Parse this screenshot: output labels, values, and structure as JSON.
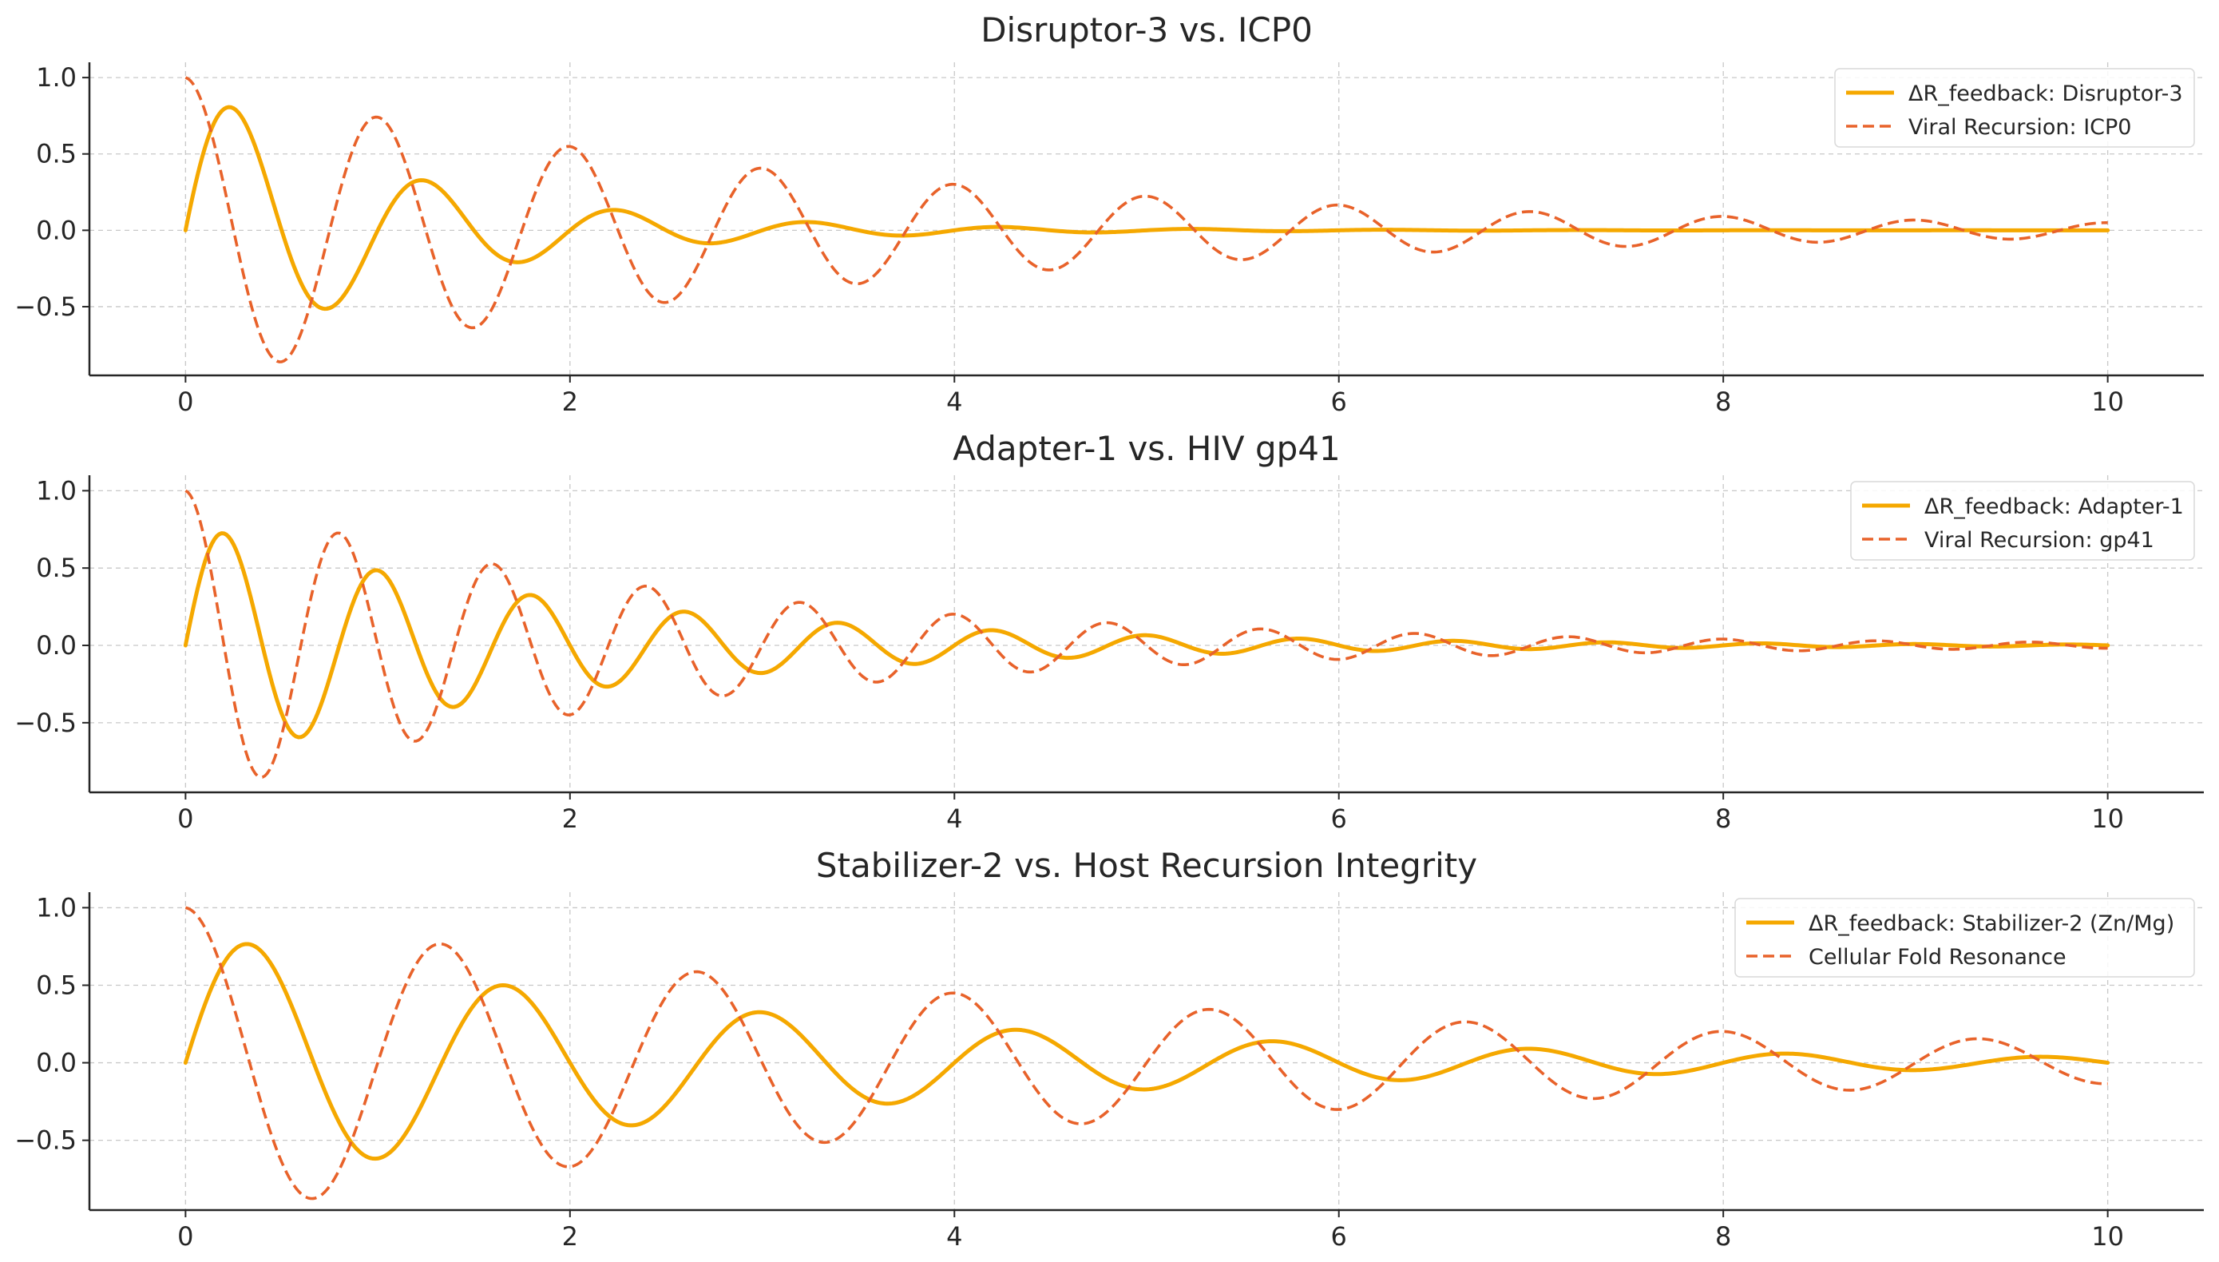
{
  "chart_data": [
    {
      "type": "line",
      "title": "Disruptor-3 vs. ICP0",
      "xlim": [
        -0.5,
        10.5
      ],
      "ylim": [
        -0.95,
        1.1
      ],
      "xticks": [
        0,
        2,
        4,
        6,
        8,
        10
      ],
      "yticks": [
        1.0,
        0.5,
        0.0,
        -0.5
      ],
      "xtick_labels": [
        "0",
        "2",
        "4",
        "6",
        "8",
        "10"
      ],
      "ytick_labels": [
        "1.0",
        "0.5",
        "0.0",
        "−0.5"
      ],
      "grid": true,
      "legend_position": "top-right",
      "series": [
        {
          "name": "ΔR_feedback: Disruptor-3",
          "color": "#f5a800",
          "style": "solid",
          "model": {
            "kind": "sin",
            "amplitude": 1.0,
            "decay": 0.9,
            "freq": 1.0
          },
          "x": [
            0,
            0.23,
            0.72,
            1.22,
            1.72,
            2.22,
            2.72,
            3.22,
            4.2,
            10
          ],
          "y": [
            0,
            0.63,
            -0.39,
            0.23,
            -0.15,
            0.09,
            -0.05,
            0.03,
            0.01,
            0
          ]
        },
        {
          "name": "Viral Recursion: ICP0",
          "color": "#e8622a",
          "style": "dashed",
          "model": {
            "kind": "cos",
            "amplitude": 1.0,
            "decay": 0.3,
            "freq": 1.0
          },
          "x": [
            0,
            0.5,
            1,
            1.5,
            2,
            2.5,
            3,
            3.5,
            4,
            4.5,
            5,
            5.5,
            6,
            6.5,
            7,
            7.5,
            8,
            8.5,
            9,
            9.5,
            10
          ],
          "y": [
            1.0,
            -0.86,
            0.74,
            -0.64,
            0.55,
            -0.47,
            0.41,
            -0.35,
            0.3,
            -0.26,
            0.22,
            -0.19,
            0.17,
            -0.14,
            0.12,
            -0.11,
            0.09,
            -0.08,
            0.07,
            -0.06,
            0.05
          ]
        }
      ]
    },
    {
      "type": "line",
      "title": "Adapter-1 vs. HIV gp41",
      "xlim": [
        -0.5,
        10.5
      ],
      "ylim": [
        -0.95,
        1.1
      ],
      "xticks": [
        0,
        2,
        4,
        6,
        8,
        10
      ],
      "yticks": [
        1.0,
        0.5,
        0.0,
        -0.5
      ],
      "xtick_labels": [
        "0",
        "2",
        "4",
        "6",
        "8",
        "10"
      ],
      "ytick_labels": [
        "1.0",
        "0.5",
        "0.0",
        "−0.5"
      ],
      "grid": true,
      "legend_position": "top-right",
      "series": [
        {
          "name": "ΔR_feedback: Adapter-1",
          "color": "#f5a800",
          "style": "solid",
          "model": {
            "kind": "sin",
            "amplitude": 0.8,
            "decay": 0.5,
            "freq": 1.25
          },
          "x": [
            0,
            0.19,
            0.59,
            0.99,
            1.39,
            1.79,
            2.19,
            2.59,
            2.99,
            3.39,
            4.2,
            10
          ],
          "y": [
            0,
            0.69,
            -0.5,
            0.36,
            -0.27,
            0.19,
            -0.14,
            0.1,
            -0.08,
            0.06,
            0.03,
            0
          ]
        },
        {
          "name": "Viral Recursion: gp41",
          "color": "#e8622a",
          "style": "dashed",
          "model": {
            "kind": "cos",
            "amplitude": 1.0,
            "decay": 0.4,
            "freq": 1.25
          },
          "x": [
            0,
            0.4,
            0.8,
            1.2,
            1.6,
            2.0,
            2.4,
            2.8,
            3.2,
            3.6,
            4.0,
            4.4,
            4.8,
            5.2,
            5.6,
            6.0,
            6.4,
            6.8,
            7.2,
            7.6,
            8.0,
            8.4,
            8.8,
            9.2,
            9.6,
            10.0
          ],
          "y": [
            1.0,
            -0.85,
            0.73,
            -0.62,
            0.53,
            -0.45,
            0.38,
            -0.33,
            0.28,
            -0.24,
            0.2,
            -0.17,
            0.15,
            -0.12,
            0.11,
            -0.09,
            0.08,
            -0.07,
            0.06,
            -0.05,
            0.04,
            -0.03,
            0.03,
            -0.03,
            0.02,
            -0.02
          ]
        }
      ]
    },
    {
      "type": "line",
      "title": "Stabilizer-2 vs. Host Recursion Integrity",
      "xlim": [
        -0.5,
        10.5
      ],
      "ylim": [
        -0.95,
        1.1
      ],
      "xticks": [
        0,
        2,
        4,
        6,
        8,
        10
      ],
      "yticks": [
        1.0,
        0.5,
        0.0,
        -0.5
      ],
      "xtick_labels": [
        "0",
        "2",
        "4",
        "6",
        "8",
        "10"
      ],
      "ytick_labels": [
        "1.0",
        "0.5",
        "0.0",
        "−0.5"
      ],
      "grid": true,
      "legend_position": "top-right",
      "series": [
        {
          "name": "ΔR_feedback: Stabilizer-2 (Zn/Mg)",
          "color": "#f5a800",
          "style": "solid",
          "model": {
            "kind": "sin",
            "amplitude": 0.85,
            "decay": 0.32,
            "freq": 0.75
          },
          "x": [
            0,
            0.33,
            0.99,
            1.66,
            2.33,
            2.99,
            3.66,
            4.33,
            4.99,
            5.66,
            6.33,
            6.99,
            7.66,
            8.33,
            9.0,
            9.66,
            10.0
          ],
          "y": [
            0,
            0.68,
            -0.49,
            0.35,
            -0.26,
            0.18,
            -0.13,
            0.09,
            -0.07,
            0.05,
            -0.04,
            0.03,
            -0.02,
            0.01,
            -0.01,
            0.01,
            0
          ]
        },
        {
          "name": "Cellular Fold Resonance",
          "color": "#e8622a",
          "style": "dashed",
          "model": {
            "kind": "cos",
            "amplitude": 1.0,
            "decay": 0.2,
            "freq": 0.75
          },
          "x": [
            0,
            0.67,
            1.33,
            2.0,
            2.67,
            3.33,
            4.0,
            4.67,
            5.33,
            6.0,
            6.67,
            7.33,
            8.0,
            8.67,
            9.33,
            10.0
          ],
          "y": [
            1.0,
            -0.87,
            0.77,
            -0.67,
            0.59,
            -0.51,
            0.45,
            -0.39,
            0.34,
            -0.3,
            0.26,
            -0.23,
            0.2,
            -0.18,
            0.15,
            -0.14
          ]
        }
      ]
    }
  ]
}
